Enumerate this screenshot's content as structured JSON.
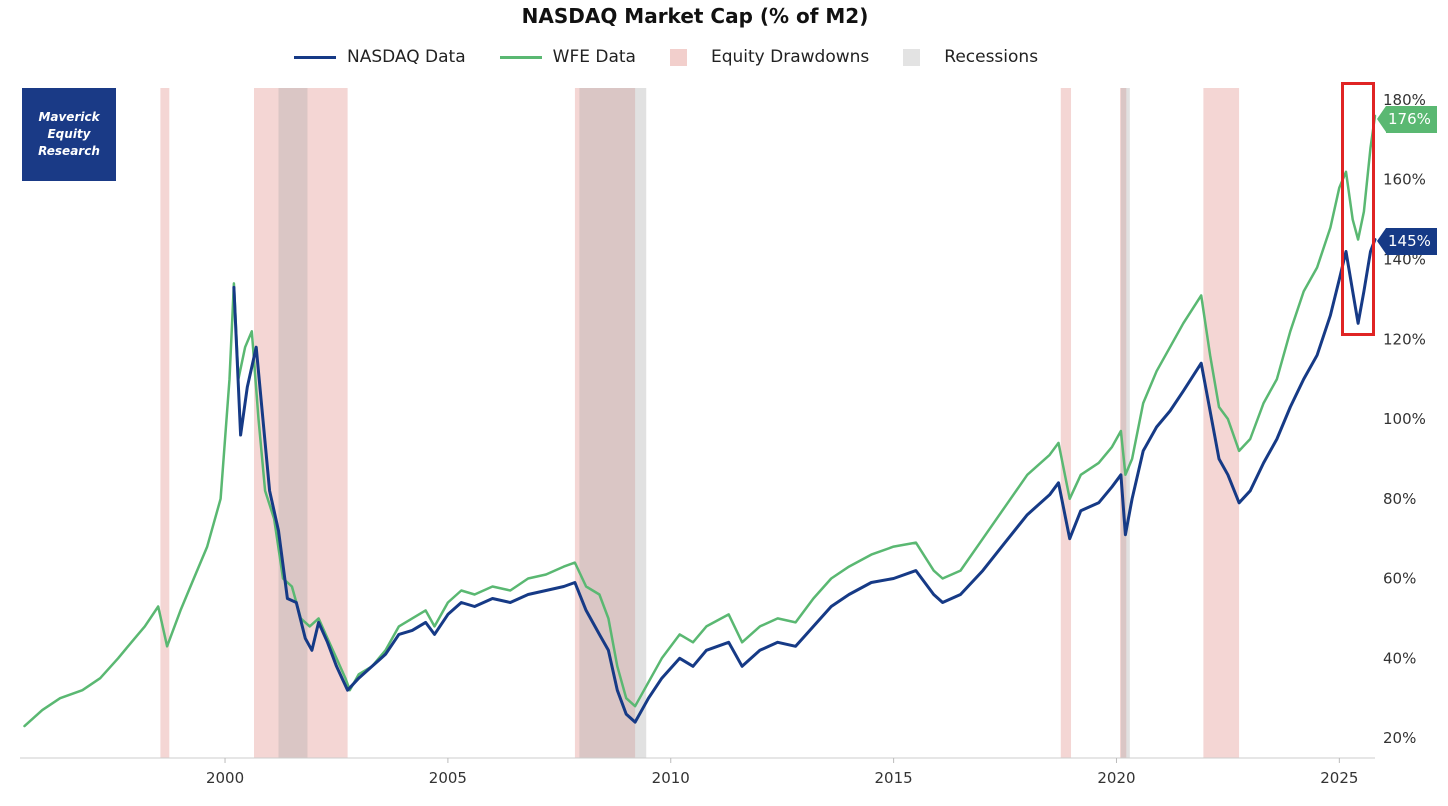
{
  "chart_data": {
    "type": "line",
    "title": "NASDAQ Market Cap (% of M2)",
    "xlabel": "",
    "ylabel": "",
    "xlim": [
      1995.4,
      2025.8
    ],
    "ylim": [
      15,
      183
    ],
    "grid": false,
    "legend_position": "top-center",
    "x_ticks": [
      {
        "value": 2000,
        "label": "2000"
      },
      {
        "value": 2005,
        "label": "2005"
      },
      {
        "value": 2010,
        "label": "2010"
      },
      {
        "value": 2015,
        "label": "2015"
      },
      {
        "value": 2020,
        "label": "2020"
      },
      {
        "value": 2025,
        "label": "2025"
      }
    ],
    "y_ticks": [
      {
        "value": 20,
        "label": "20%"
      },
      {
        "value": 40,
        "label": "40%"
      },
      {
        "value": 60,
        "label": "60%"
      },
      {
        "value": 80,
        "label": "80%"
      },
      {
        "value": 100,
        "label": "100%"
      },
      {
        "value": 120,
        "label": "120%"
      },
      {
        "value": 140,
        "label": "140%"
      },
      {
        "value": 160,
        "label": "160%"
      },
      {
        "value": 180,
        "label": "180%"
      }
    ],
    "legend": [
      {
        "name": "NASDAQ Data",
        "kind": "line",
        "color": "#163a86"
      },
      {
        "name": "WFE Data",
        "kind": "line",
        "color": "#5ab872"
      },
      {
        "name": "Equity Drawdowns",
        "kind": "band",
        "color": "#f2cfcc"
      },
      {
        "name": "Recessions",
        "kind": "band",
        "color": "#e3e3e3"
      }
    ],
    "drawdowns": [
      [
        1998.55,
        1998.75
      ],
      [
        2000.65,
        2002.75
      ],
      [
        2007.85,
        2009.2
      ],
      [
        2018.75,
        2018.98
      ],
      [
        2020.08,
        2020.22
      ],
      [
        2021.95,
        2022.75
      ]
    ],
    "recessions": [
      [
        2001.2,
        2001.85
      ],
      [
        2007.95,
        2009.45
      ],
      [
        2020.1,
        2020.3
      ]
    ],
    "series": [
      {
        "name": "WFE Data",
        "color": "#5ab872",
        "points": [
          [
            1995.5,
            23
          ],
          [
            1995.9,
            27
          ],
          [
            1996.3,
            30
          ],
          [
            1996.8,
            32
          ],
          [
            1997.2,
            35
          ],
          [
            1997.6,
            40
          ],
          [
            1997.9,
            44
          ],
          [
            1998.2,
            48
          ],
          [
            1998.5,
            53
          ],
          [
            1998.7,
            43
          ],
          [
            1999.0,
            52
          ],
          [
            1999.3,
            60
          ],
          [
            1999.6,
            68
          ],
          [
            1999.9,
            80
          ],
          [
            2000.1,
            110
          ],
          [
            2000.2,
            134
          ],
          [
            2000.3,
            110
          ],
          [
            2000.45,
            118
          ],
          [
            2000.6,
            122
          ],
          [
            2000.75,
            100
          ],
          [
            2000.9,
            82
          ],
          [
            2001.1,
            75
          ],
          [
            2001.3,
            60
          ],
          [
            2001.5,
            58
          ],
          [
            2001.7,
            50
          ],
          [
            2001.9,
            48
          ],
          [
            2002.1,
            50
          ],
          [
            2002.3,
            45
          ],
          [
            2002.5,
            40
          ],
          [
            2002.7,
            35
          ],
          [
            2002.8,
            32
          ],
          [
            2003.0,
            36
          ],
          [
            2003.3,
            38
          ],
          [
            2003.6,
            42
          ],
          [
            2003.9,
            48
          ],
          [
            2004.2,
            50
          ],
          [
            2004.5,
            52
          ],
          [
            2004.7,
            48
          ],
          [
            2005.0,
            54
          ],
          [
            2005.3,
            57
          ],
          [
            2005.6,
            56
          ],
          [
            2006.0,
            58
          ],
          [
            2006.4,
            57
          ],
          [
            2006.8,
            60
          ],
          [
            2007.2,
            61
          ],
          [
            2007.6,
            63
          ],
          [
            2007.85,
            64
          ],
          [
            2008.1,
            58
          ],
          [
            2008.4,
            56
          ],
          [
            2008.6,
            50
          ],
          [
            2008.8,
            38
          ],
          [
            2009.0,
            30
          ],
          [
            2009.2,
            28
          ],
          [
            2009.5,
            34
          ],
          [
            2009.8,
            40
          ],
          [
            2010.2,
            46
          ],
          [
            2010.5,
            44
          ],
          [
            2010.8,
            48
          ],
          [
            2011.3,
            51
          ],
          [
            2011.6,
            44
          ],
          [
            2012.0,
            48
          ],
          [
            2012.4,
            50
          ],
          [
            2012.8,
            49
          ],
          [
            2013.2,
            55
          ],
          [
            2013.6,
            60
          ],
          [
            2014.0,
            63
          ],
          [
            2014.5,
            66
          ],
          [
            2015.0,
            68
          ],
          [
            2015.5,
            69
          ],
          [
            2015.9,
            62
          ],
          [
            2016.1,
            60
          ],
          [
            2016.5,
            62
          ],
          [
            2017.0,
            70
          ],
          [
            2017.5,
            78
          ],
          [
            2018.0,
            86
          ],
          [
            2018.5,
            91
          ],
          [
            2018.7,
            94
          ],
          [
            2018.95,
            80
          ],
          [
            2019.2,
            86
          ],
          [
            2019.6,
            89
          ],
          [
            2019.9,
            93
          ],
          [
            2020.1,
            97
          ],
          [
            2020.2,
            86
          ],
          [
            2020.35,
            90
          ],
          [
            2020.6,
            104
          ],
          [
            2020.9,
            112
          ],
          [
            2021.2,
            118
          ],
          [
            2021.5,
            124
          ],
          [
            2021.9,
            131
          ],
          [
            2022.1,
            116
          ],
          [
            2022.3,
            103
          ],
          [
            2022.5,
            100
          ],
          [
            2022.75,
            92
          ],
          [
            2023.0,
            95
          ],
          [
            2023.3,
            104
          ],
          [
            2023.6,
            110
          ],
          [
            2023.9,
            122
          ],
          [
            2024.2,
            132
          ],
          [
            2024.5,
            138
          ],
          [
            2024.8,
            148
          ],
          [
            2025.0,
            158
          ],
          [
            2025.15,
            162
          ],
          [
            2025.3,
            150
          ],
          [
            2025.42,
            145
          ],
          [
            2025.55,
            152
          ],
          [
            2025.7,
            168
          ],
          [
            2025.8,
            176
          ]
        ]
      },
      {
        "name": "NASDAQ Data",
        "color": "#163a86",
        "points": [
          [
            2000.2,
            133
          ],
          [
            2000.35,
            96
          ],
          [
            2000.5,
            108
          ],
          [
            2000.7,
            118
          ],
          [
            2000.85,
            100
          ],
          [
            2001.0,
            82
          ],
          [
            2001.2,
            72
          ],
          [
            2001.4,
            55
          ],
          [
            2001.6,
            54
          ],
          [
            2001.8,
            45
          ],
          [
            2001.95,
            42
          ],
          [
            2002.1,
            49
          ],
          [
            2002.3,
            44
          ],
          [
            2002.5,
            38
          ],
          [
            2002.75,
            32
          ],
          [
            2003.0,
            35
          ],
          [
            2003.3,
            38
          ],
          [
            2003.6,
            41
          ],
          [
            2003.9,
            46
          ],
          [
            2004.2,
            47
          ],
          [
            2004.5,
            49
          ],
          [
            2004.7,
            46
          ],
          [
            2005.0,
            51
          ],
          [
            2005.3,
            54
          ],
          [
            2005.6,
            53
          ],
          [
            2006.0,
            55
          ],
          [
            2006.4,
            54
          ],
          [
            2006.8,
            56
          ],
          [
            2007.2,
            57
          ],
          [
            2007.6,
            58
          ],
          [
            2007.85,
            59
          ],
          [
            2008.1,
            52
          ],
          [
            2008.4,
            46
          ],
          [
            2008.6,
            42
          ],
          [
            2008.8,
            32
          ],
          [
            2009.0,
            26
          ],
          [
            2009.2,
            24
          ],
          [
            2009.5,
            30
          ],
          [
            2009.8,
            35
          ],
          [
            2010.2,
            40
          ],
          [
            2010.5,
            38
          ],
          [
            2010.8,
            42
          ],
          [
            2011.3,
            44
          ],
          [
            2011.6,
            38
          ],
          [
            2012.0,
            42
          ],
          [
            2012.4,
            44
          ],
          [
            2012.8,
            43
          ],
          [
            2013.2,
            48
          ],
          [
            2013.6,
            53
          ],
          [
            2014.0,
            56
          ],
          [
            2014.5,
            59
          ],
          [
            2015.0,
            60
          ],
          [
            2015.5,
            62
          ],
          [
            2015.9,
            56
          ],
          [
            2016.1,
            54
          ],
          [
            2016.5,
            56
          ],
          [
            2017.0,
            62
          ],
          [
            2017.5,
            69
          ],
          [
            2018.0,
            76
          ],
          [
            2018.5,
            81
          ],
          [
            2018.7,
            84
          ],
          [
            2018.95,
            70
          ],
          [
            2019.2,
            77
          ],
          [
            2019.6,
            79
          ],
          [
            2019.9,
            83
          ],
          [
            2020.1,
            86
          ],
          [
            2020.2,
            71
          ],
          [
            2020.35,
            80
          ],
          [
            2020.6,
            92
          ],
          [
            2020.9,
            98
          ],
          [
            2021.2,
            102
          ],
          [
            2021.5,
            107
          ],
          [
            2021.9,
            114
          ],
          [
            2022.1,
            102
          ],
          [
            2022.3,
            90
          ],
          [
            2022.5,
            86
          ],
          [
            2022.75,
            79
          ],
          [
            2023.0,
            82
          ],
          [
            2023.3,
            89
          ],
          [
            2023.6,
            95
          ],
          [
            2023.9,
            103
          ],
          [
            2024.2,
            110
          ],
          [
            2024.5,
            116
          ],
          [
            2024.8,
            126
          ],
          [
            2025.0,
            135
          ],
          [
            2025.15,
            142
          ],
          [
            2025.3,
            132
          ],
          [
            2025.42,
            124
          ],
          [
            2025.55,
            132
          ],
          [
            2025.7,
            142
          ],
          [
            2025.8,
            145
          ]
        ]
      }
    ],
    "end_labels": [
      {
        "series": "WFE Data",
        "label": "176%",
        "color": "#5ab872"
      },
      {
        "series": "NASDAQ Data",
        "label": "145%",
        "color": "#163a86"
      }
    ]
  },
  "logo": {
    "lines": [
      "Maverick",
      "Equity",
      "Research"
    ],
    "color": "#1a3a86"
  }
}
